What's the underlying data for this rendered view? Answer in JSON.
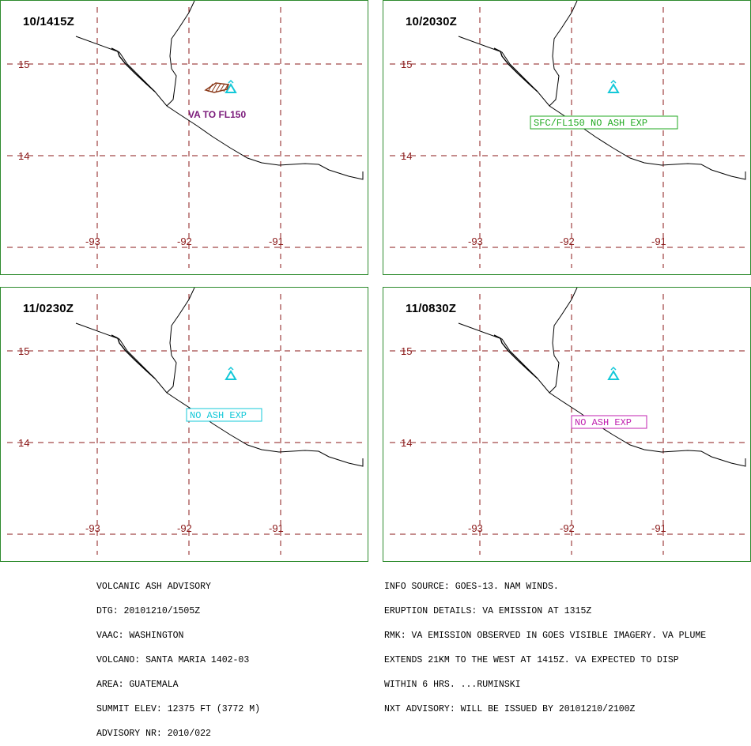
{
  "panels": [
    {
      "time": "10/1415Z",
      "label": "VA TO FL150",
      "label_style": "plain",
      "label_color": "#7a1a7a",
      "show_ash": true
    },
    {
      "time": "10/2030Z",
      "label": "SFC/FL150 NO ASH EXP",
      "label_style": "box",
      "label_color": "#22aa22",
      "show_ash": false
    },
    {
      "time": "11/0230Z",
      "label": "NO ASH EXP",
      "label_style": "box",
      "label_color": "#14c8d8",
      "show_ash": false
    },
    {
      "time": "11/0830Z",
      "label": "NO ASH EXP",
      "label_style": "box",
      "label_color": "#c020b0",
      "show_ash": false
    }
  ],
  "map": {
    "lat_labels": [
      "15",
      "14"
    ],
    "lon_labels": [
      "-93",
      "-92",
      "-91"
    ],
    "grid_color": "#8b1a1a",
    "coast_color": "#000000",
    "volcano_color": "#14c8d8",
    "ash_color": "#8b3a1a",
    "volcano_icon": "triangle-volcano-icon"
  },
  "advisory_left": [
    "VOLCANIC ASH ADVISORY",
    "DTG: 20101210/1505Z",
    "VAAC: WASHINGTON",
    "VOLCANO: SANTA MARIA 1402-03",
    "AREA: GUATEMALA",
    "SUMMIT ELEV: 12375 FT (3772 M)",
    "ADVISORY NR: 2010/022"
  ],
  "advisory_right": [
    "INFO SOURCE: GOES-13. NAM WINDS.",
    "ERUPTION DETAILS: VA EMISSION AT 1315Z",
    "RMK: VA EMISSION OBSERVED IN GOES VISIBLE IMAGERY. VA PLUME",
    "EXTENDS 21KM TO THE WEST AT 1415Z. VA EXPECTED TO DISP",
    "WITHIN 6 HRS. ...RUMINSKI",
    "NXT ADVISORY: WILL BE ISSUED BY 20101210/2100Z"
  ]
}
